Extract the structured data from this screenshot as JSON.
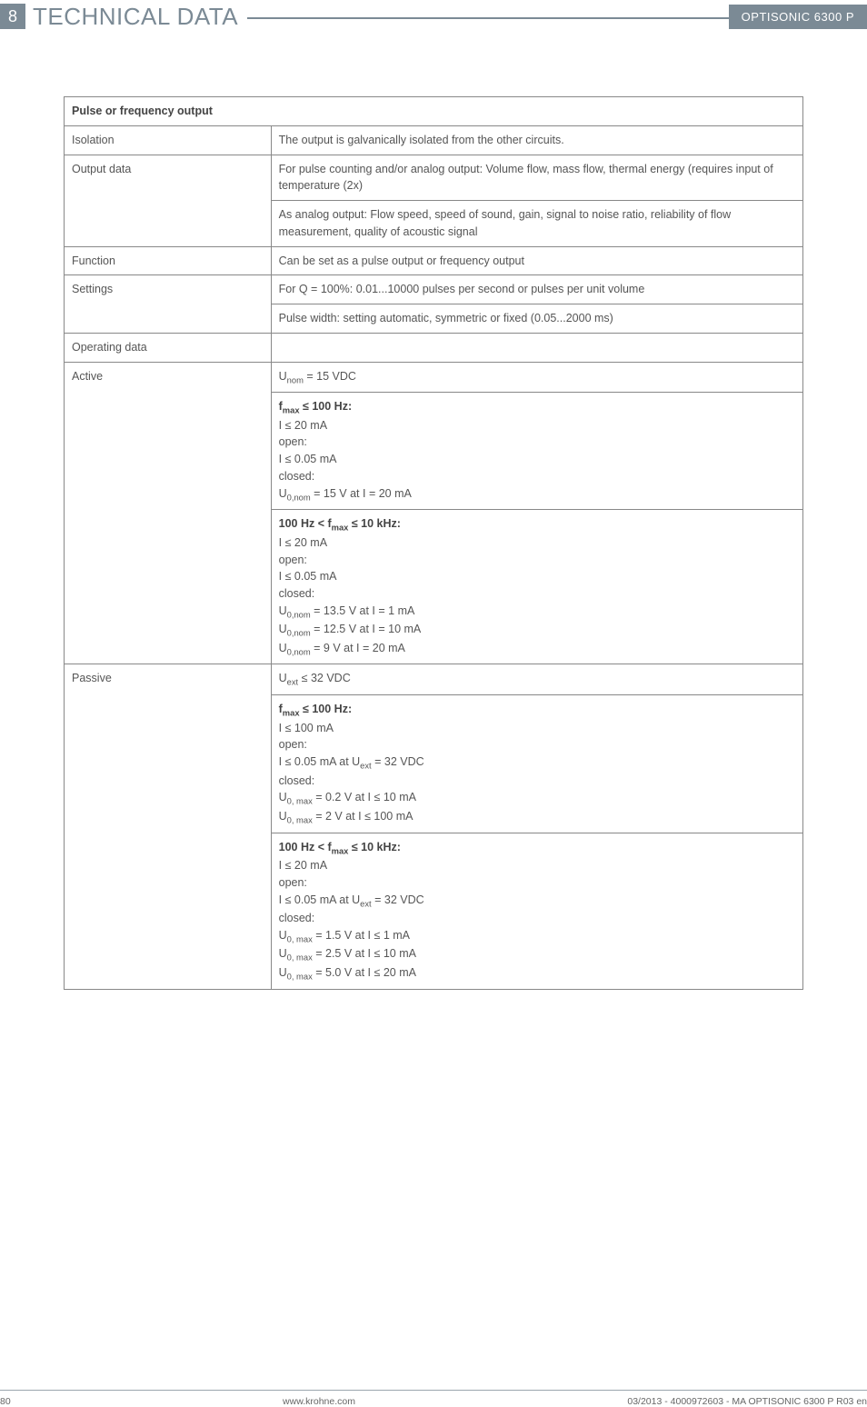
{
  "header": {
    "chapter_number": "8",
    "chapter_title": "TECHNICAL DATA",
    "product": "OPTISONIC 6300 P"
  },
  "table": {
    "section_title": "Pulse or frequency output",
    "rows": [
      {
        "label": "Isolation",
        "cells": [
          "The output is galvanically isolated from the other circuits."
        ]
      },
      {
        "label": "Output data",
        "cells": [
          "For pulse counting and/or analog output: Volume flow, mass flow, thermal energy (requires input of temperature (2x)",
          "As analog output: Flow speed, speed of sound, gain, signal to noise ratio, reliability of flow measurement, quality of acoustic signal"
        ]
      },
      {
        "label": "Function",
        "cells": [
          "Can be set as a pulse output or frequency output"
        ]
      },
      {
        "label": "Settings",
        "cells": [
          "For Q = 100%: 0.01...10000 pulses per second or pulses per unit volume",
          "Pulse width: setting automatic, symmetric or fixed (0.05...2000 ms)"
        ]
      },
      {
        "label": "Operating data",
        "cells": [
          ""
        ]
      },
      {
        "label": "Active",
        "cells": [
          "__ACTIVE_1__",
          "__ACTIVE_2__",
          "__ACTIVE_3__"
        ]
      },
      {
        "label": "Passive",
        "cells": [
          "__PASSIVE_1__",
          "__PASSIVE_2__",
          "__PASSIVE_3__"
        ]
      }
    ],
    "active": {
      "line1": "U<sub>nom</sub> = 15 VDC",
      "block2_title": "f<sub>max</sub> ≤ 100 Hz:",
      "block2_lines": [
        "I ≤ 20 mA",
        "open:",
        "I ≤ 0.05 mA",
        "closed:",
        "U<sub>0,nom</sub> = 15 V at I = 20 mA"
      ],
      "block3_title": "100 Hz < f<sub>max</sub> ≤ 10 kHz:",
      "block3_lines": [
        "I ≤ 20 mA",
        "open:",
        "I ≤ 0.05 mA",
        "closed:",
        "U<sub>0,nom</sub> = 13.5 V at I = 1 mA",
        "U<sub>0,nom</sub> = 12.5 V at I = 10 mA",
        "U<sub>0,nom</sub> = 9 V at I = 20 mA"
      ]
    },
    "passive": {
      "line1": "U<sub>ext</sub> ≤ 32 VDC",
      "block2_title": "f<sub>max</sub> ≤ 100 Hz:",
      "block2_lines": [
        "I ≤ 100 mA",
        "open:",
        "I ≤ 0.05 mA at U<sub>ext</sub> = 32 VDC",
        "closed:",
        "U<sub>0, max</sub> = 0.2 V at I ≤ 10 mA",
        "U<sub>0, max</sub> = 2 V at I ≤ 100 mA"
      ],
      "block3_title": "100 Hz < f<sub>max</sub> ≤ 10 kHz:",
      "block3_lines": [
        "I ≤ 20 mA",
        "open:",
        "I ≤ 0.05 mA at U<sub>ext</sub> = 32 VDC",
        "closed:",
        "U<sub>0, max</sub> = 1.5 V at I ≤ 1 mA",
        "U<sub>0, max</sub> = 2.5 V at I ≤ 10 mA",
        "U<sub>0, max</sub> = 5.0 V at I ≤ 20 mA"
      ]
    }
  },
  "footer": {
    "page": "80",
    "site": "www.krohne.com",
    "doc": "03/2013 - 4000972603 - MA OPTISONIC 6300 P R03 en"
  }
}
